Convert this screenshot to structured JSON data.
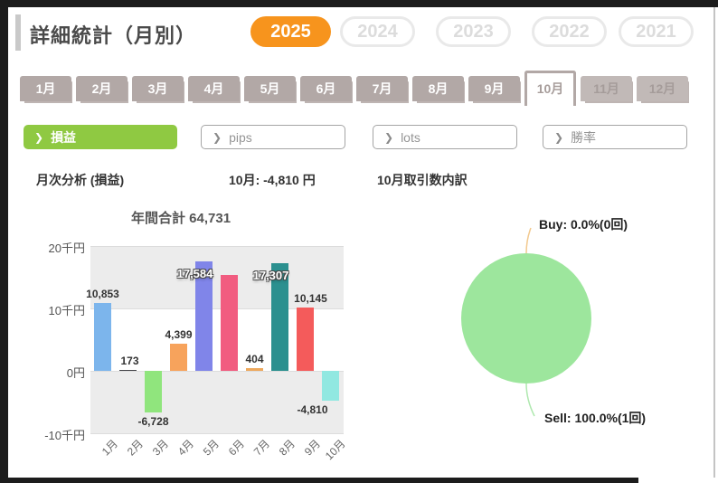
{
  "header": {
    "title": "詳細統計（月別）",
    "years": [
      {
        "label": "2025",
        "active": true
      },
      {
        "label": "2024",
        "active": false
      },
      {
        "label": "2023",
        "active": false
      },
      {
        "label": "2022",
        "active": false
      },
      {
        "label": "2021",
        "active": false
      }
    ],
    "active_year_color": "#f7941d"
  },
  "month_tabs": [
    {
      "label": "1月",
      "state": "normal"
    },
    {
      "label": "2月",
      "state": "normal"
    },
    {
      "label": "3月",
      "state": "normal"
    },
    {
      "label": "4月",
      "state": "normal"
    },
    {
      "label": "5月",
      "state": "normal"
    },
    {
      "label": "6月",
      "state": "normal"
    },
    {
      "label": "7月",
      "state": "normal"
    },
    {
      "label": "8月",
      "state": "normal"
    },
    {
      "label": "9月",
      "state": "normal"
    },
    {
      "label": "10月",
      "state": "active"
    },
    {
      "label": "11月",
      "state": "disabled"
    },
    {
      "label": "12月",
      "state": "disabled"
    }
  ],
  "filters": {
    "chevron": "❯",
    "active_color": "#8fc942",
    "items": [
      {
        "label": "損益",
        "active": true
      },
      {
        "label": "pips",
        "active": false
      },
      {
        "label": "lots",
        "active": false
      },
      {
        "label": "勝率",
        "active": false
      }
    ]
  },
  "sections": {
    "bar_title": "月次分析 (損益)",
    "month_summary": "10月: -4,810 円",
    "pie_title": "10月取引数内訳"
  },
  "chart_data": [
    {
      "type": "bar",
      "title": "年間合計 64,731",
      "unit": "円",
      "categories": [
        "1月",
        "2月",
        "3月",
        "4月",
        "5月",
        "6月",
        "7月",
        "8月",
        "9月",
        "10月"
      ],
      "values": [
        10853,
        173,
        -6728,
        4399,
        17584,
        15404,
        404,
        17307,
        10145,
        -4810
      ],
      "labels": [
        "10,853",
        "173",
        "-6,728",
        "4,399",
        "17,584",
        "",
        "404",
        "17,307",
        "10,145",
        "-4,810"
      ],
      "outlined_labels": [
        4,
        7
      ],
      "colors": [
        "#7cb5ec",
        "#434348",
        "#90e57d",
        "#f7a35c",
        "#8085e9",
        "#f15c80",
        "#eda85c",
        "#2b908f",
        "#f45b5b",
        "#91e8e1"
      ],
      "yticks": [
        {
          "value": 20000,
          "label": "20千円"
        },
        {
          "value": 10000,
          "label": "10千円"
        },
        {
          "value": 0,
          "label": "0円"
        },
        {
          "value": -10000,
          "label": "-10千円"
        }
      ],
      "ylim": [
        -10000,
        20000
      ],
      "grid": true,
      "legend": "none"
    },
    {
      "type": "pie",
      "color": "#9de69d",
      "slices": [
        {
          "name": "Buy",
          "label": "Buy: 0.0%(0回)",
          "percent": 0.0,
          "count": 0
        },
        {
          "name": "Sell",
          "label": "Sell: 100.0%(1回)",
          "percent": 100.0,
          "count": 1
        }
      ],
      "legend": "callout-labels"
    }
  ]
}
